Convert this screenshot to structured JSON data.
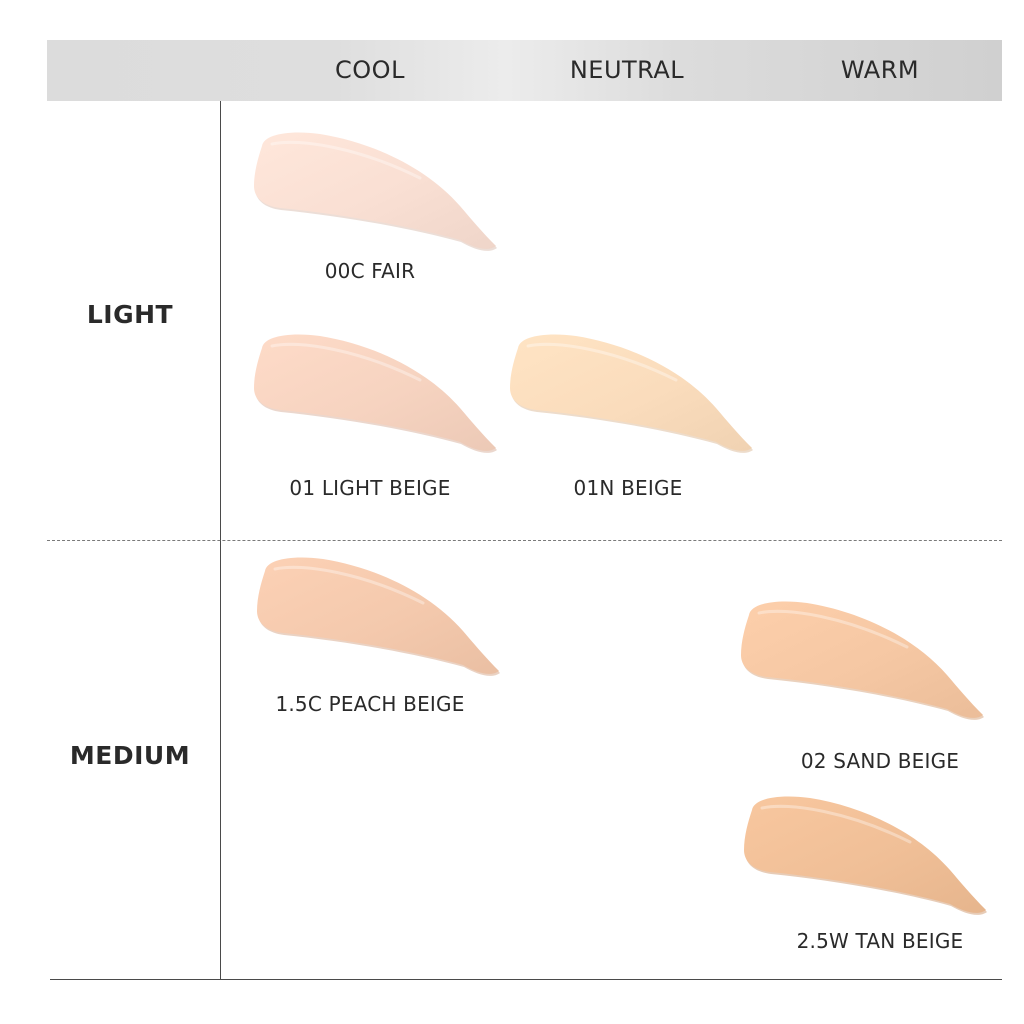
{
  "columns": [
    {
      "label": "COOL"
    },
    {
      "label": "NEUTRAL"
    },
    {
      "label": "WARM"
    }
  ],
  "rows": [
    {
      "label": "LIGHT"
    },
    {
      "label": "MEDIUM"
    }
  ],
  "shades": [
    {
      "name": "00C FAIR",
      "tone": "cool",
      "depth": "light",
      "color": "#f9dfd3"
    },
    {
      "name": "01 LIGHT BEIGE",
      "tone": "cool",
      "depth": "light",
      "color": "#f6d3c0"
    },
    {
      "name": "01N BEIGE",
      "tone": "neutral",
      "depth": "light",
      "color": "#fadcbc"
    },
    {
      "name": "1.5C PEACH BEIGE",
      "tone": "cool",
      "depth": "medium",
      "color": "#f4c9ad"
    },
    {
      "name": "02 SAND BEIGE",
      "tone": "warm",
      "depth": "medium",
      "color": "#f5c7a3"
    },
    {
      "name": "2.5W TAN BEIGE",
      "tone": "warm",
      "depth": "medium",
      "color": "#f0bf97"
    }
  ]
}
